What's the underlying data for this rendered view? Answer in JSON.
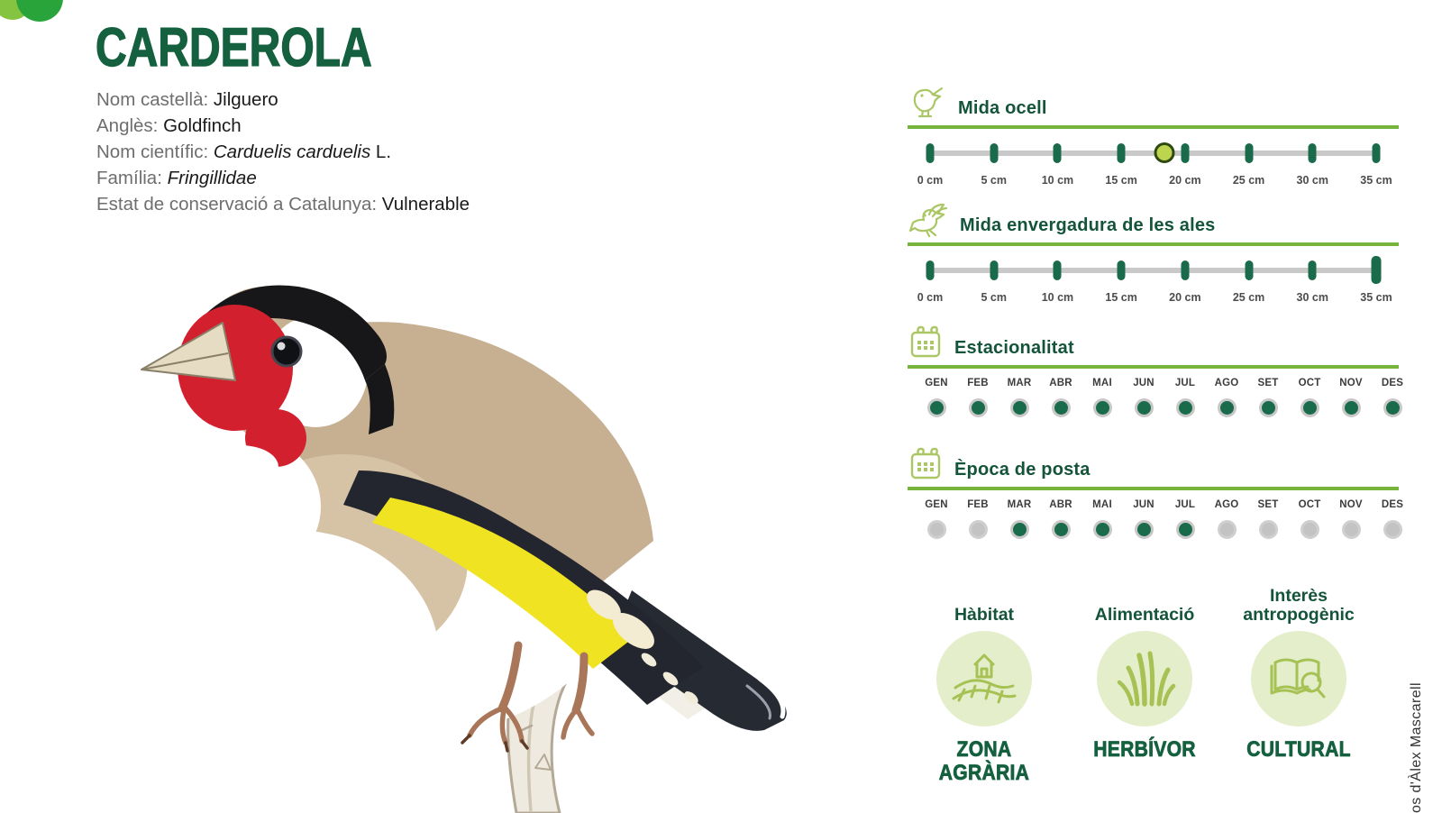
{
  "title": "CARDEROLA",
  "info": [
    {
      "label": "Nom castellà:",
      "value": "Jilguero",
      "suffix": ""
    },
    {
      "label": "Anglès:",
      "value": "Goldfinch",
      "suffix": ""
    },
    {
      "label": "Nom científic:",
      "value": "Carduelis carduelis",
      "suffix": " L."
    },
    {
      "label": "Família:",
      "value": "Fringillidae",
      "suffix": ""
    },
    {
      "label": "Estat de conservació a Catalunya:",
      "value": "Vulnerable",
      "suffix": ""
    }
  ],
  "panel": {
    "size_ruler": {
      "title": "Mida ocell",
      "icon": "perched-bird-icon",
      "unit_labels": [
        "0 cm",
        "5 cm",
        "10 cm",
        "15 cm",
        "20 cm",
        "25 cm",
        "30 cm",
        "35 cm"
      ],
      "min": 0,
      "max": 35,
      "marker_value": 18.4,
      "marker_style": "dot"
    },
    "wingspan_ruler": {
      "title": "Mida envergadura de les ales",
      "icon": "flying-bird-icon",
      "unit_labels": [
        "0 cm",
        "5 cm",
        "10 cm",
        "15 cm",
        "20 cm",
        "25 cm",
        "30 cm",
        "35 cm"
      ],
      "min": 0,
      "max": 35,
      "marker_value": 35,
      "marker_style": "big-tick"
    },
    "seasonality": {
      "title": "Estacionalitat",
      "icon": "calendar-icon",
      "months": [
        "GEN",
        "FEB",
        "MAR",
        "ABR",
        "MAI",
        "JUN",
        "JUL",
        "AGO",
        "SET",
        "OCT",
        "NOV",
        "DES"
      ],
      "active": [
        true,
        true,
        true,
        true,
        true,
        true,
        true,
        true,
        true,
        true,
        true,
        true
      ]
    },
    "laying_season": {
      "title": "Època de posta",
      "icon": "calendar-icon",
      "months": [
        "GEN",
        "FEB",
        "MAR",
        "ABR",
        "MAI",
        "JUN",
        "JUL",
        "AGO",
        "SET",
        "OCT",
        "NOV",
        "DES"
      ],
      "active": [
        false,
        false,
        true,
        true,
        true,
        true,
        true,
        false,
        false,
        false,
        false,
        false
      ]
    },
    "attributes": [
      {
        "title": "Hàbitat",
        "icon": "farm-house-icon",
        "value": "ZONA AGRÀRIA"
      },
      {
        "title": "Alimentació",
        "icon": "grass-icon",
        "value": "HERBÍVOR"
      },
      {
        "title": "Interès antropogènic",
        "icon": "book-magnifier-icon",
        "value": "CULTURAL"
      }
    ]
  },
  "credit": "os d'Àlex Mascarell",
  "colors": {
    "dark_green": "#15603e",
    "line_green": "#76b43c",
    "icon_green": "#abc765",
    "pale_green": "#e5eecb",
    "dot_green": "#1a6b4b",
    "dot_gray": "#c3c3c3",
    "ruler_gray": "#c9c9c9",
    "marker_fill": "#bcd44e",
    "marker_stroke": "#2e4a10",
    "logo_light_green": "#85c441",
    "logo_green": "#29a43b",
    "label_gray": "#6e6e6e",
    "value_black": "#1a1a1a"
  }
}
